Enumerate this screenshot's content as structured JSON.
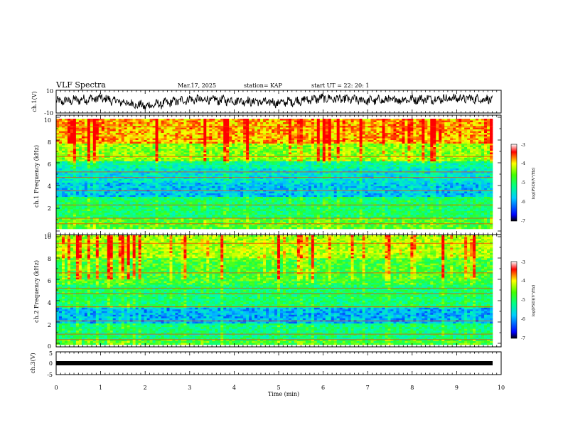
{
  "header": {
    "title": "VLF Spectra",
    "date": "Mar.17, 2025",
    "station": "station= KAP",
    "start": "start UT =  22: 20: 1"
  },
  "colors": {
    "spectrogram_scale": [
      "#000080",
      "#0000ff",
      "#00bfff",
      "#00ffcc",
      "#00ff44",
      "#a0ff00",
      "#ffff00",
      "#ff8000",
      "#ff0000",
      "#ffffff"
    ]
  },
  "chart_data": [
    {
      "type": "line",
      "panel": "ch.1 waveform",
      "ylabel": "ch.1(V)",
      "ylim": [
        -10,
        10
      ],
      "yticks": [
        "10",
        "-10"
      ],
      "xlim": [
        0,
        10
      ],
      "series": [
        {
          "name": "ch.1",
          "description": "noisy VLF waveform amplitude envelope",
          "x": [
            0,
            1,
            2,
            3,
            4,
            5,
            6,
            7,
            8,
            9,
            9.8
          ],
          "y": [
            0,
            3,
            -4,
            2,
            1,
            -1,
            3,
            1,
            2,
            3,
            2
          ]
        }
      ]
    },
    {
      "type": "heatmap",
      "panel": "ch.1 spectrogram",
      "ylabel": "ch.1 Frequency (kHz)",
      "ylim": [
        0,
        10
      ],
      "yticks": [
        "0",
        "2",
        "4",
        "6",
        "8",
        "10"
      ],
      "xlim": [
        0,
        9.85
      ],
      "colorbar": {
        "label": "log(PSD)(V²/Hz)",
        "range": [
          -7,
          -3
        ],
        "ticks": [
          "-3",
          "-4",
          "-5",
          "-6",
          "-7"
        ]
      }
    },
    {
      "type": "heatmap",
      "panel": "ch.2 spectrogram",
      "ylabel": "ch.2 Frequency (kHz)",
      "ylim": [
        0,
        10
      ],
      "yticks": [
        "0",
        "2",
        "4",
        "6",
        "8",
        "10"
      ],
      "xlim": [
        0,
        9.85
      ],
      "colorbar": {
        "label": "log(PSD)(V²/Hz)",
        "range": [
          -7,
          -3
        ],
        "ticks": [
          "-3",
          "-4",
          "-5",
          "-6",
          "-7"
        ]
      }
    },
    {
      "type": "line",
      "panel": "ch.3 level",
      "ylabel": "ch.3(V)",
      "ylim": [
        -5,
        5
      ],
      "yticks": [
        "5",
        "0",
        "-5"
      ],
      "xlim": [
        0,
        10
      ],
      "series": [
        {
          "name": "ch.3",
          "x": [
            0,
            9.85
          ],
          "y": [
            0,
            0
          ]
        }
      ]
    }
  ],
  "xaxis": {
    "label": "Time (min)",
    "ticks": [
      "0",
      "1",
      "2",
      "3",
      "4",
      "5",
      "6",
      "7",
      "8",
      "9",
      "10"
    ]
  }
}
